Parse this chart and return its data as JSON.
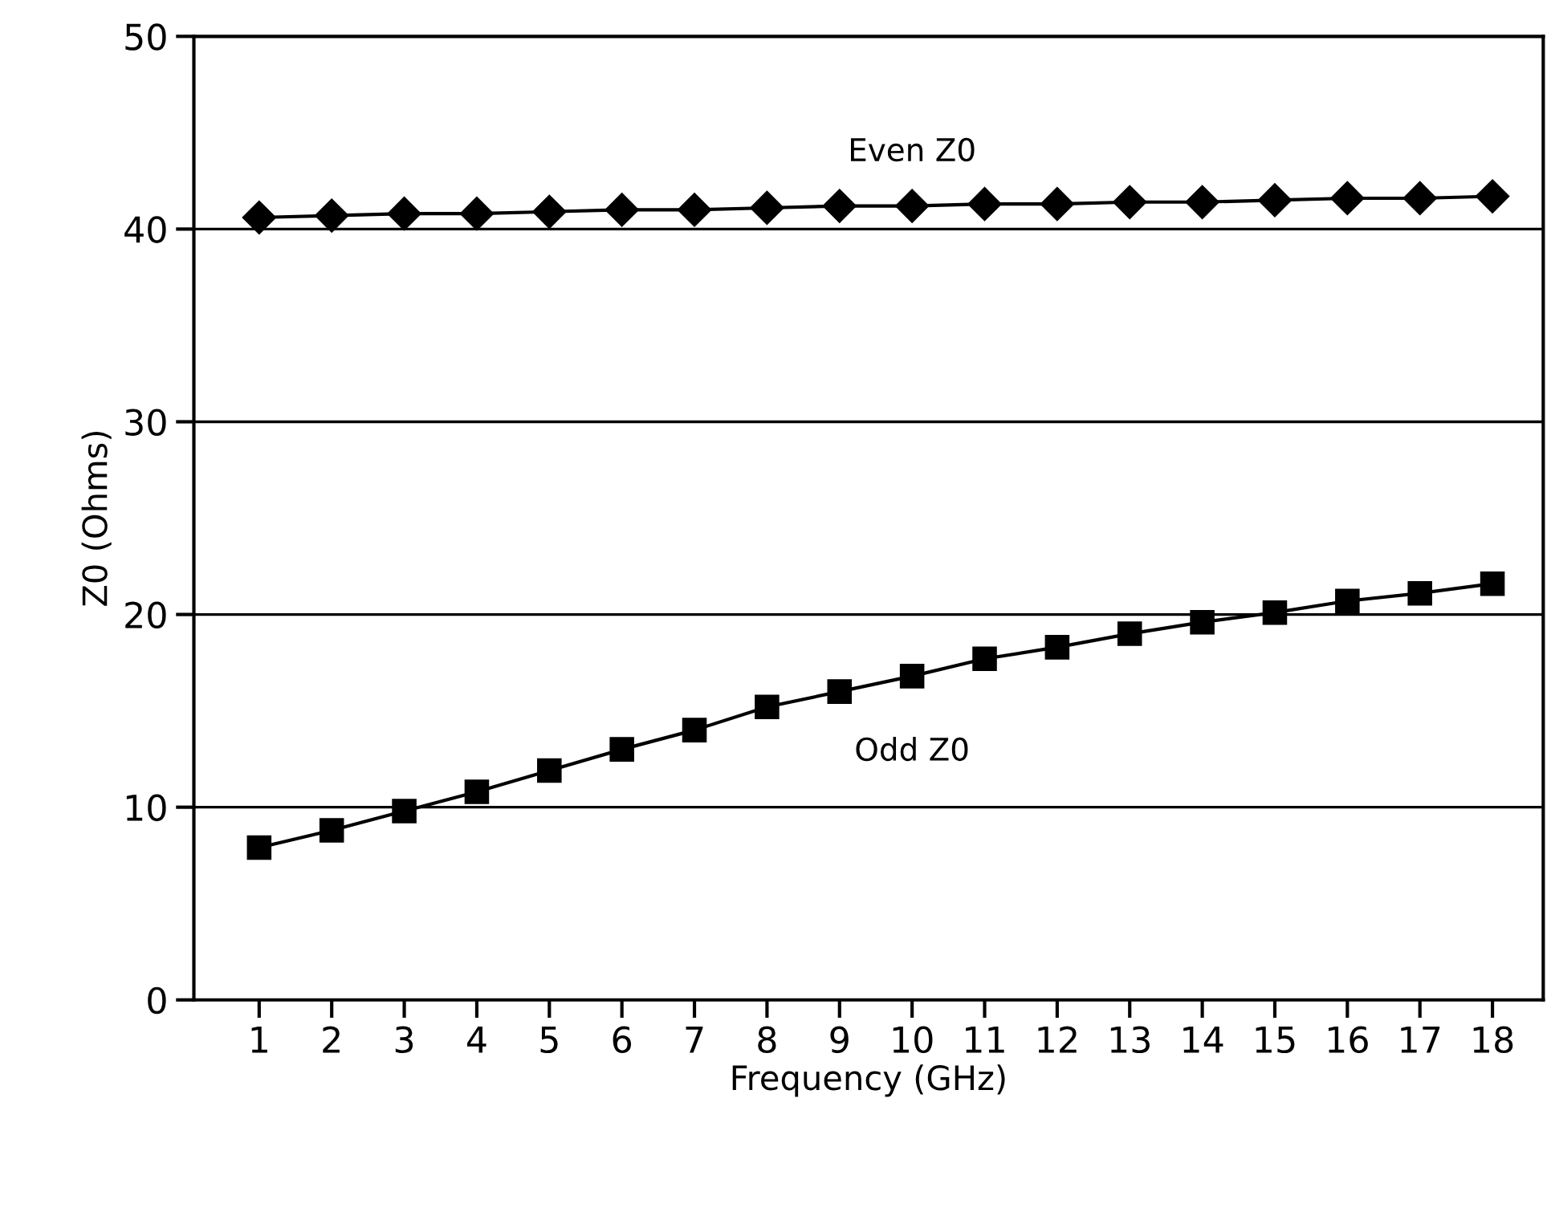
{
  "chart_data": {
    "type": "line",
    "xlabel": "Frequency (GHz)",
    "ylabel": "Z0 (Ohms)",
    "x": [
      1,
      2,
      3,
      4,
      5,
      6,
      7,
      8,
      9,
      10,
      11,
      12,
      13,
      14,
      15,
      16,
      17,
      18
    ],
    "series": [
      {
        "name": "Even Z0",
        "color": "#000000",
        "marker": "diamond",
        "values": [
          40.6,
          40.7,
          40.8,
          40.8,
          40.9,
          41.0,
          41.0,
          41.1,
          41.2,
          41.2,
          41.3,
          41.3,
          41.4,
          41.4,
          41.5,
          41.6,
          41.6,
          41.7
        ]
      },
      {
        "name": "Odd Z0",
        "color": "#000000",
        "marker": "square",
        "values": [
          7.9,
          8.8,
          9.8,
          10.8,
          11.9,
          13.0,
          14.0,
          15.2,
          16.0,
          16.8,
          17.7,
          18.3,
          19.0,
          19.6,
          20.1,
          20.7,
          21.1,
          21.6
        ]
      }
    ],
    "xlim": [
      0.1,
      18.7
    ],
    "xticks": [
      1,
      2,
      3,
      4,
      5,
      6,
      7,
      8,
      9,
      10,
      11,
      12,
      13,
      14,
      15,
      16,
      17,
      18
    ],
    "ylim": [
      0,
      50
    ],
    "yticks": [
      0,
      10,
      20,
      30,
      40,
      50
    ],
    "grid": "y",
    "legend": false,
    "line_style": "solid"
  }
}
